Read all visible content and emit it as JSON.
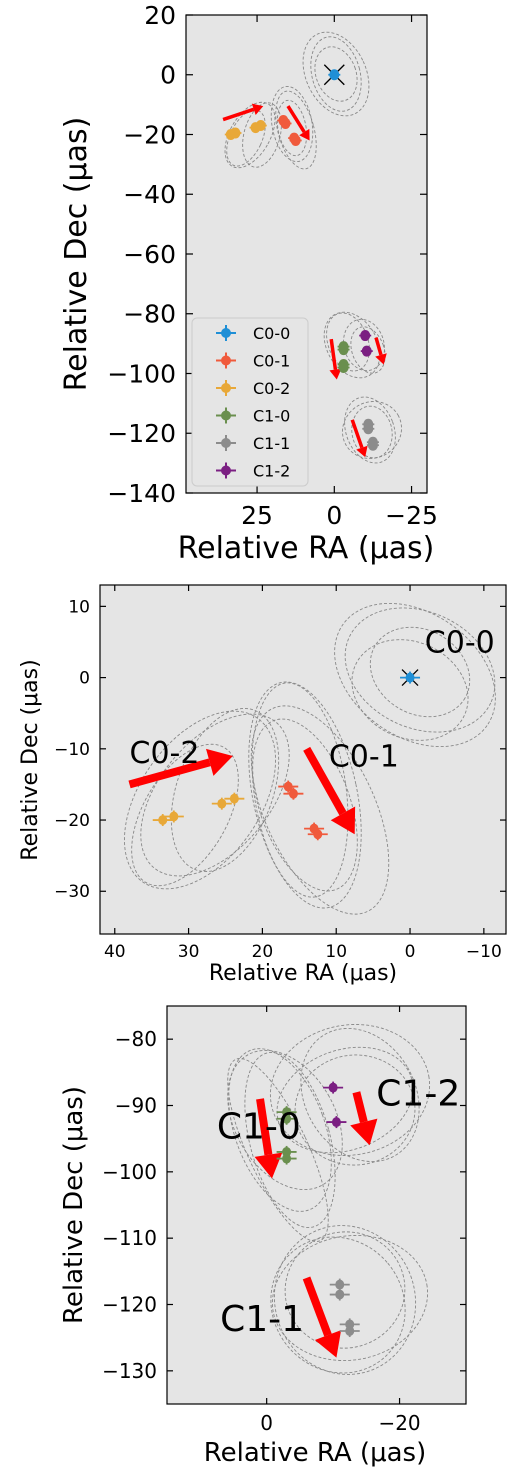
{
  "chart_data": [
    {
      "type": "scatter",
      "xlabel": "Relative RA (μas)",
      "ylabel": "Relative Dec (μas)",
      "xlim": [
        48,
        -30
      ],
      "ylim": [
        -140,
        20
      ],
      "xticks": [
        25,
        0,
        -25
      ],
      "yticks": [
        20,
        0,
        -20,
        -40,
        -60,
        -80,
        -100,
        -120,
        -140
      ],
      "legend": "lower-left",
      "series": [
        {
          "name": "C0-0",
          "color": "#1f8fd6",
          "points": [
            [
              0,
              0
            ]
          ]
        },
        {
          "name": "C0-1",
          "color": "#f05a3c",
          "points": [
            [
              16.5,
              -15.3
            ],
            [
              15.8,
              -16.3
            ],
            [
              13,
              -21.2
            ],
            [
              12.5,
              -22
            ]
          ]
        },
        {
          "name": "C0-2",
          "color": "#e8a838",
          "points": [
            [
              33.5,
              -20
            ],
            [
              32,
              -19.5
            ],
            [
              25.5,
              -17.7
            ],
            [
              23.8,
              -17
            ]
          ]
        },
        {
          "name": "C1-0",
          "color": "#6a8f4e",
          "points": [
            [
              -3,
              -91
            ],
            [
              -3,
              -92
            ],
            [
              -3,
              -97
            ],
            [
              -3,
              -98
            ]
          ]
        },
        {
          "name": "C1-1",
          "color": "#8c8c8c",
          "points": [
            [
              -11,
              -117
            ],
            [
              -11,
              -118.5
            ],
            [
              -12.5,
              -123
            ],
            [
              -12.5,
              -124
            ]
          ]
        },
        {
          "name": "C1-2",
          "color": "#7b1f82",
          "points": [
            [
              -10,
              -87.3
            ],
            [
              -10.5,
              -92.5
            ]
          ]
        }
      ],
      "arrows": [
        {
          "from": [
            36,
            -15
          ],
          "to": [
            23,
            -10.5
          ]
        },
        {
          "from": [
            15,
            -10.5
          ],
          "to": [
            8,
            -22
          ]
        },
        {
          "from": [
            1,
            -88.5
          ],
          "to": [
            -0.8,
            -102
          ]
        },
        {
          "from": [
            -13.5,
            -88
          ],
          "to": [
            -16,
            -97
          ]
        },
        {
          "from": [
            -5.8,
            -115.5
          ],
          "to": [
            -10,
            -128
          ]
        }
      ]
    },
    {
      "type": "scatter",
      "xlabel": "Relative RA (μas)",
      "ylabel": "Relative Dec (μas)",
      "xlim": [
        42,
        -13
      ],
      "ylim": [
        -36,
        13
      ],
      "xticks": [
        40,
        30,
        20,
        10,
        0,
        -10
      ],
      "yticks": [
        10,
        0,
        -10,
        -20,
        -30
      ],
      "annotations": [
        {
          "text": "C0-0",
          "x": -2,
          "y": 3.5
        },
        {
          "text": "C0-1",
          "x": 11,
          "y": -12.5
        },
        {
          "text": "C0-2",
          "x": 38,
          "y": -12
        }
      ],
      "arrows": [
        {
          "from": [
            38,
            -15
          ],
          "to": [
            24,
            -11
          ]
        },
        {
          "from": [
            14,
            -10
          ],
          "to": [
            7.5,
            -22
          ]
        }
      ]
    },
    {
      "type": "scatter",
      "xlabel": "Relative RA (μas)",
      "ylabel": "Relative Dec (μas)",
      "xlim": [
        15,
        -30
      ],
      "ylim": [
        -135,
        -75
      ],
      "xticks": [
        0,
        -20
      ],
      "yticks": [
        -80,
        -90,
        -100,
        -110,
        -120,
        -130
      ],
      "annotations": [
        {
          "text": "C1-0",
          "x": 7.5,
          "y": -95
        },
        {
          "text": "C1-1",
          "x": 7,
          "y": -124
        },
        {
          "text": "C1-2",
          "x": -16.5,
          "y": -90
        }
      ],
      "arrows": [
        {
          "from": [
            1,
            -89
          ],
          "to": [
            -0.8,
            -101
          ]
        },
        {
          "from": [
            -13.5,
            -88
          ],
          "to": [
            -15.5,
            -96
          ]
        },
        {
          "from": [
            -6,
            -116
          ],
          "to": [
            -10.5,
            -128
          ]
        }
      ]
    }
  ]
}
